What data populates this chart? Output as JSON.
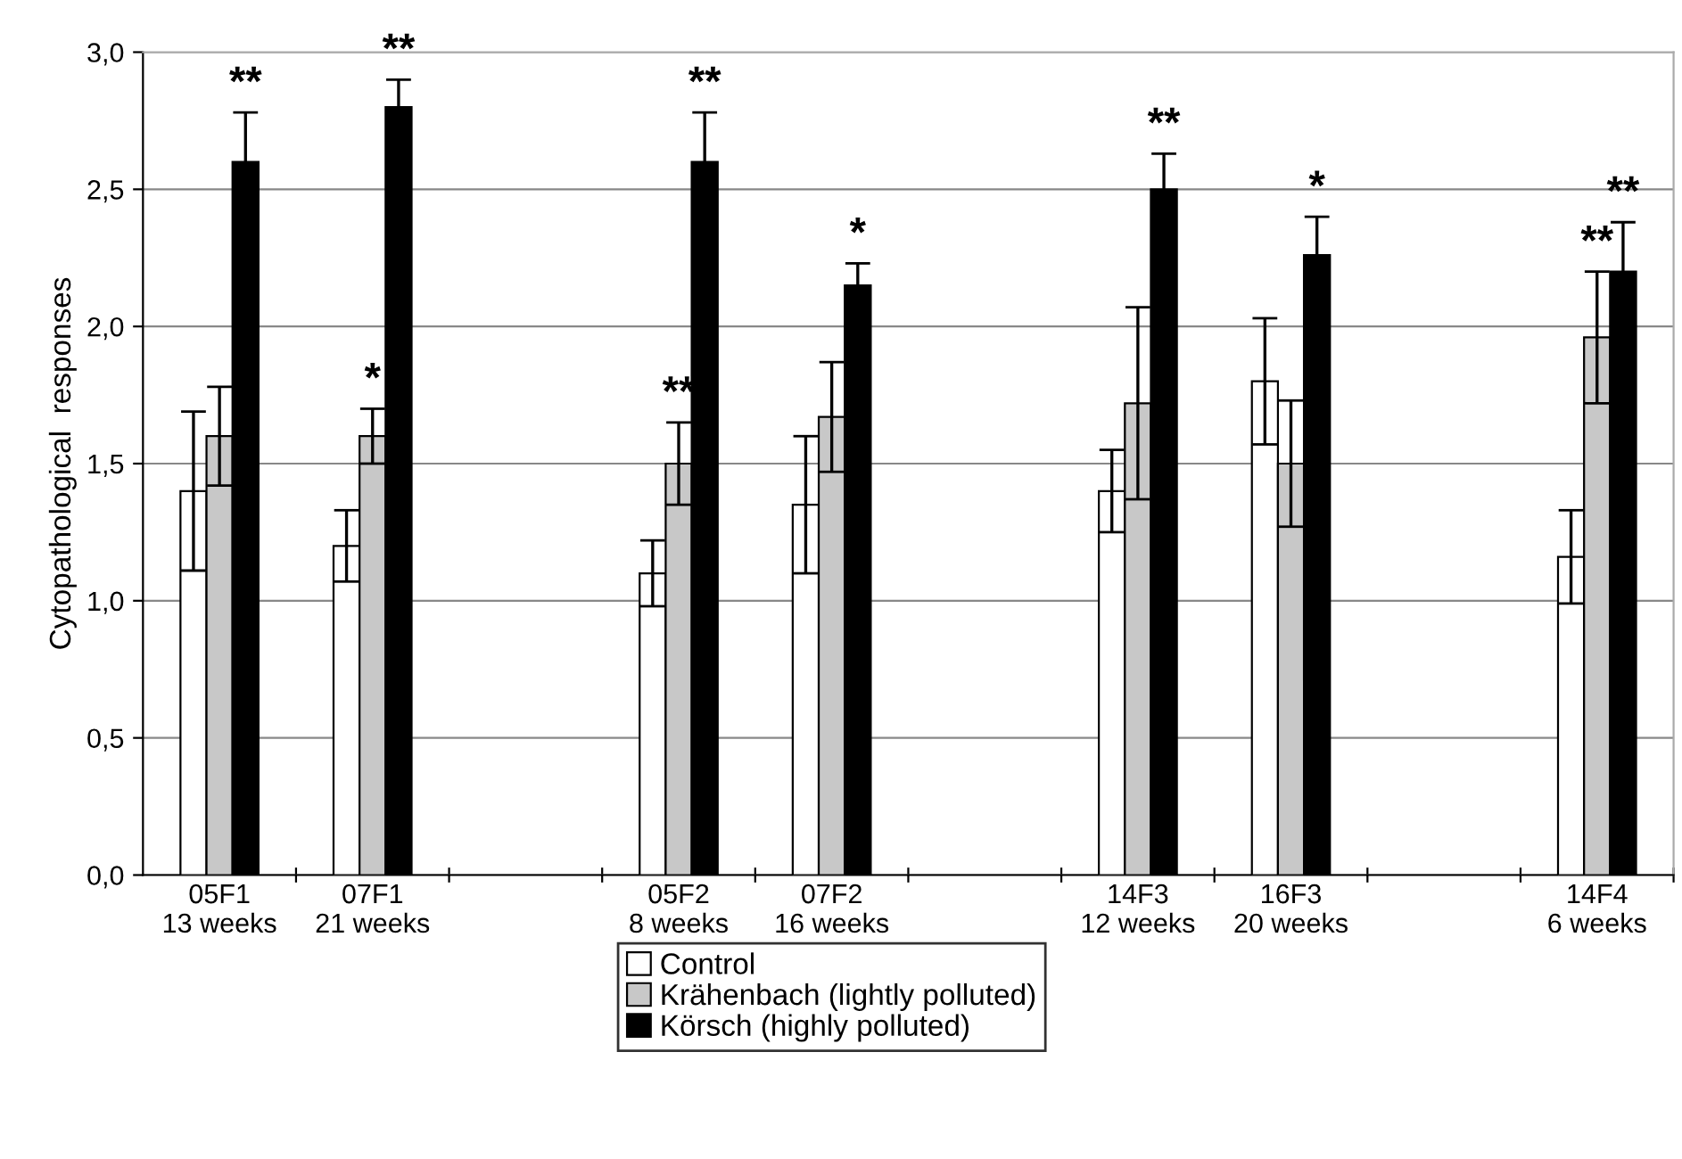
{
  "chart_data": {
    "type": "bar",
    "ylabel": "Cytopathological  responses",
    "categories": [
      "05F1\n13 weeks",
      "07F1\n21 weeks",
      null,
      "05F2\n8 weeks",
      "07F2\n16 weeks",
      null,
      "14F3\n12 weeks",
      "16F3\n20 weeks",
      null,
      "14F4\n6 weeks"
    ],
    "series": [
      {
        "name": "Control",
        "color": "#ffffff",
        "values": [
          1.4,
          1.2,
          null,
          1.1,
          1.35,
          null,
          1.4,
          1.8,
          null,
          1.16
        ],
        "errors": [
          0.29,
          0.13,
          null,
          0.12,
          0.25,
          null,
          0.15,
          0.23,
          null,
          0.17
        ],
        "value_labels": [
          null,
          null,
          null,
          null,
          null,
          null,
          null,
          null,
          null,
          null
        ]
      },
      {
        "name": "Krähenbach (lightly polluted)",
        "color": "#c8c8c8",
        "values": [
          1.6,
          1.6,
          null,
          1.5,
          1.67,
          null,
          1.72,
          1.5,
          null,
          1.96
        ],
        "errors": [
          0.18,
          0.1,
          null,
          0.15,
          0.2,
          null,
          0.35,
          0.23,
          null,
          0.24
        ],
        "value_labels": [
          null,
          "*",
          null,
          "**",
          null,
          null,
          null,
          null,
          null,
          "**"
        ]
      },
      {
        "name": "Körsch (highly polluted)",
        "color": "#000000",
        "values": [
          2.6,
          2.8,
          null,
          2.6,
          2.15,
          null,
          2.5,
          2.26,
          null,
          2.2
        ],
        "errors": [
          0.18,
          0.1,
          null,
          0.18,
          0.08,
          null,
          0.13,
          0.14,
          null,
          0.18
        ],
        "value_labels": [
          "**",
          "**",
          null,
          "**",
          "*",
          null,
          "**",
          "*",
          null,
          "**"
        ]
      }
    ],
    "ylim": [
      0,
      3
    ],
    "yticks": [
      {
        "value": 0,
        "label": "0,0"
      },
      {
        "value": 0.5,
        "label": "0,5"
      },
      {
        "value": 1,
        "label": "1,0"
      },
      {
        "value": 1.5,
        "label": "1,5"
      },
      {
        "value": 2,
        "label": "2,0"
      },
      {
        "value": 2.5,
        "label": "2,5"
      },
      {
        "value": 3,
        "label": "3,0"
      }
    ],
    "grid": "y",
    "legend": "bottom"
  }
}
